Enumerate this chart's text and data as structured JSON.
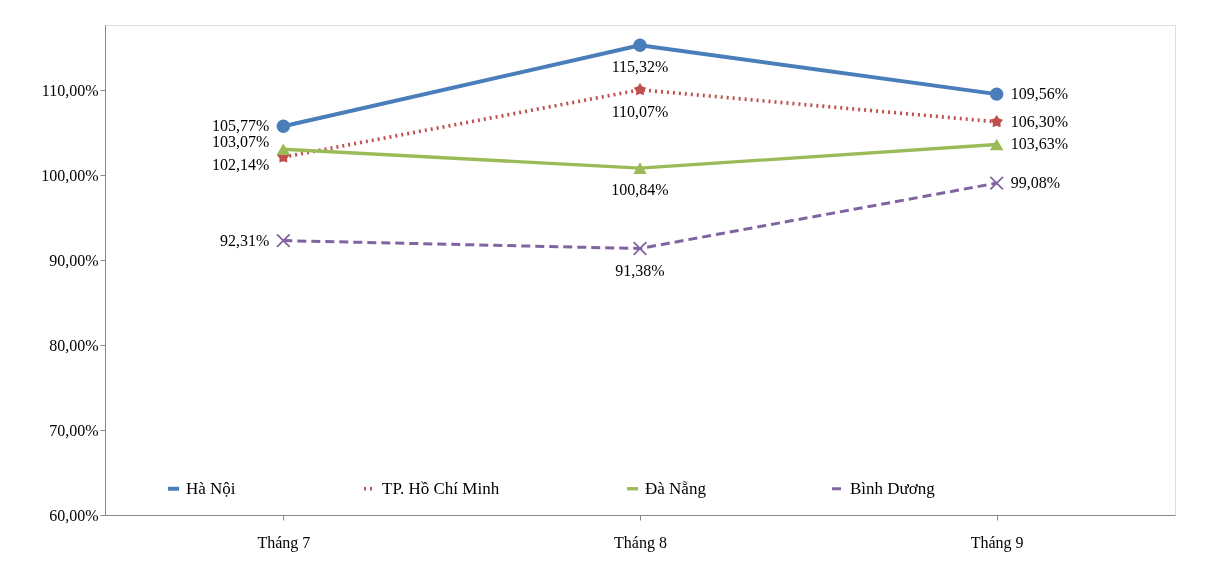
{
  "chart_data": {
    "type": "line",
    "categories": [
      "Tháng 7",
      "Tháng 8",
      "Tháng 9"
    ],
    "ylim": [
      60,
      117.7
    ],
    "yticks": [
      {
        "value": 60,
        "label": "60,00%"
      },
      {
        "value": 70,
        "label": "70,00%"
      },
      {
        "value": 80,
        "label": "80,00%"
      },
      {
        "value": 90,
        "label": "90,00%"
      },
      {
        "value": 100,
        "label": "100,00%"
      },
      {
        "value": 110,
        "label": "110,00%"
      }
    ],
    "grid": false,
    "legend": "bottom",
    "series": [
      {
        "name": "Hà Nội",
        "color": "#4a7ebb",
        "marker": "circle",
        "line_style": "solid",
        "values": [
          105.77,
          115.32,
          109.56
        ],
        "value_labels": [
          "105,77%",
          "115,32%",
          "109,56%"
        ]
      },
      {
        "name": "TP. Hồ Chí Minh",
        "color": "#c0504d",
        "marker": "star",
        "line_style": "dotted",
        "values": [
          102.14,
          110.07,
          106.3
        ],
        "value_labels": [
          "102,14%",
          "110,07%",
          "106,30%"
        ]
      },
      {
        "name": "Đà Nẵng",
        "color": "#9bbb59",
        "marker": "triangle",
        "line_style": "solid",
        "values": [
          103.07,
          100.84,
          103.63
        ],
        "value_labels": [
          "103,07%",
          "100,84%",
          "103,63%"
        ]
      },
      {
        "name": "Bình Dương",
        "color": "#8064a2",
        "marker": "cross",
        "line_style": "dashed",
        "values": [
          92.31,
          91.38,
          99.08
        ],
        "value_labels": [
          "92,31%",
          "91,38%",
          "99,08%"
        ]
      }
    ]
  }
}
